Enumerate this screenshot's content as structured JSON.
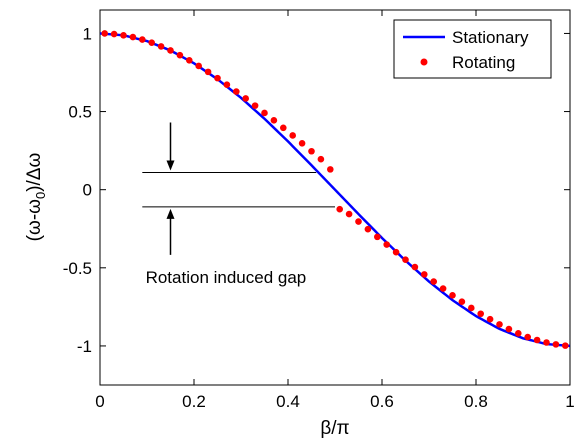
{
  "chart_data": {
    "type": "line",
    "title": "",
    "xlabel": "β/π",
    "ylabel": "(ω-ω0)/Δω",
    "ylabel_parts": {
      "open": "(ω-ω",
      "sub": "0",
      "close": ")/Δω"
    },
    "xlim": [
      0,
      1
    ],
    "ylim": [
      -1.25,
      1.15
    ],
    "xticks": [
      0,
      0.2,
      0.4,
      0.6,
      0.8,
      1
    ],
    "xtick_labels": [
      "0",
      "0.2",
      "0.4",
      "0.6",
      "0.8",
      "1"
    ],
    "yticks": [
      -1,
      -0.5,
      0,
      0.5,
      1
    ],
    "ytick_labels": [
      "-1",
      "-0.5",
      "0",
      "0.5",
      "1"
    ],
    "grid": false,
    "legend_position": "top-right",
    "series": [
      {
        "name": "Stationary",
        "style": "line",
        "color": "#0000ff",
        "x": [
          0,
          0.05,
          0.1,
          0.15,
          0.2,
          0.25,
          0.3,
          0.35,
          0.4,
          0.45,
          0.5,
          0.55,
          0.6,
          0.65,
          0.7,
          0.75,
          0.8,
          0.85,
          0.9,
          0.95,
          1
        ],
        "y": [
          1.0,
          0.988,
          0.951,
          0.891,
          0.809,
          0.707,
          0.588,
          0.454,
          0.309,
          0.156,
          0.0,
          -0.156,
          -0.309,
          -0.454,
          -0.588,
          -0.707,
          -0.809,
          -0.891,
          -0.951,
          -0.988,
          -1.0
        ]
      },
      {
        "name": "Rotating",
        "style": "dots",
        "color": "#ff0000",
        "x": [
          0.01,
          0.03,
          0.05,
          0.07,
          0.09,
          0.11,
          0.13,
          0.15,
          0.17,
          0.19,
          0.21,
          0.23,
          0.25,
          0.27,
          0.29,
          0.31,
          0.33,
          0.35,
          0.37,
          0.39,
          0.41,
          0.43,
          0.45,
          0.47,
          0.49,
          0.51,
          0.53,
          0.55,
          0.57,
          0.59,
          0.61,
          0.63,
          0.65,
          0.67,
          0.69,
          0.71,
          0.73,
          0.75,
          0.77,
          0.79,
          0.81,
          0.83,
          0.85,
          0.87,
          0.89,
          0.91,
          0.93,
          0.95,
          0.97,
          0.99
        ],
        "y": [
          1.0,
          0.996,
          0.988,
          0.977,
          0.961,
          0.941,
          0.917,
          0.891,
          0.861,
          0.828,
          0.792,
          0.754,
          0.714,
          0.672,
          0.628,
          0.584,
          0.538,
          0.491,
          0.444,
          0.396,
          0.347,
          0.297,
          0.246,
          0.195,
          0.13,
          -0.125,
          -0.156,
          -0.204,
          -0.253,
          -0.302,
          -0.351,
          -0.4,
          -0.448,
          -0.495,
          -0.542,
          -0.588,
          -0.633,
          -0.676,
          -0.717,
          -0.757,
          -0.794,
          -0.829,
          -0.862,
          -0.892,
          -0.919,
          -0.943,
          -0.962,
          -0.978,
          -0.99,
          -0.998
        ]
      }
    ],
    "annotation": {
      "text": "Rotation induced gap",
      "upper_line": {
        "x": [
          0.09,
          0.46
        ],
        "y": 0.11
      },
      "lower_line": {
        "x": [
          0.09,
          0.5
        ],
        "y": -0.11
      },
      "arrow_x": 0.15
    }
  }
}
